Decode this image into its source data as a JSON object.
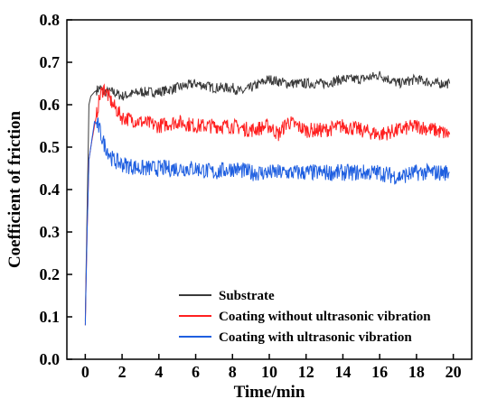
{
  "chart_data": {
    "type": "line",
    "xlabel": "Time/min",
    "ylabel": "Coefficient of friction",
    "xlim": [
      -1,
      21
    ],
    "ylim": [
      0,
      0.8
    ],
    "x_ticks": [
      0,
      2,
      4,
      6,
      8,
      10,
      12,
      14,
      16,
      18,
      20
    ],
    "y_ticks": [
      0.0,
      0.1,
      0.2,
      0.3,
      0.4,
      0.5,
      0.6,
      0.7,
      0.8
    ],
    "grid": false,
    "legend_position": "bottom-right",
    "series": [
      {
        "name": "Substrate",
        "color": "#3a3a3a",
        "x": [
          0.0,
          0.1,
          0.2,
          0.3,
          0.5,
          0.8,
          1.0,
          1.5,
          2.0,
          3.0,
          4.0,
          5.0,
          6.0,
          7.0,
          8.0,
          8.5,
          9.0,
          10.0,
          11.0,
          12.0,
          13.0,
          14.0,
          15.0,
          16.0,
          17.0,
          18.0,
          19.0,
          19.8
        ],
        "y": [
          0.09,
          0.35,
          0.6,
          0.62,
          0.63,
          0.64,
          0.63,
          0.63,
          0.62,
          0.63,
          0.63,
          0.64,
          0.65,
          0.64,
          0.64,
          0.63,
          0.64,
          0.66,
          0.65,
          0.65,
          0.65,
          0.66,
          0.66,
          0.67,
          0.65,
          0.66,
          0.65,
          0.65
        ]
      },
      {
        "name": "Coating without ultrasonic vibration",
        "color": "#ff2020",
        "x": [
          0.0,
          0.1,
          0.2,
          0.3,
          0.5,
          0.8,
          1.0,
          1.5,
          2.0,
          3.0,
          4.0,
          5.0,
          6.0,
          7.0,
          8.0,
          9.0,
          10.0,
          10.5,
          11.0,
          12.0,
          13.0,
          14.0,
          15.0,
          16.0,
          17.0,
          18.0,
          19.0,
          19.8
        ],
        "y": [
          0.08,
          0.3,
          0.47,
          0.5,
          0.55,
          0.62,
          0.64,
          0.6,
          0.57,
          0.56,
          0.55,
          0.56,
          0.55,
          0.55,
          0.55,
          0.54,
          0.55,
          0.53,
          0.56,
          0.54,
          0.54,
          0.55,
          0.54,
          0.53,
          0.54,
          0.55,
          0.54,
          0.53
        ]
      },
      {
        "name": "Coating with ultrasonic vibration",
        "color": "#1f5fe0",
        "x": [
          0.0,
          0.1,
          0.2,
          0.3,
          0.5,
          0.7,
          1.0,
          1.5,
          2.0,
          3.0,
          4.0,
          5.0,
          6.0,
          7.0,
          8.0,
          9.0,
          10.0,
          11.0,
          12.0,
          13.0,
          14.0,
          15.0,
          16.0,
          17.0,
          18.0,
          19.0,
          19.8
        ],
        "y": [
          0.08,
          0.3,
          0.47,
          0.5,
          0.56,
          0.55,
          0.51,
          0.47,
          0.46,
          0.45,
          0.45,
          0.45,
          0.45,
          0.44,
          0.45,
          0.44,
          0.44,
          0.44,
          0.44,
          0.44,
          0.44,
          0.44,
          0.44,
          0.43,
          0.44,
          0.44,
          0.44
        ]
      }
    ]
  }
}
